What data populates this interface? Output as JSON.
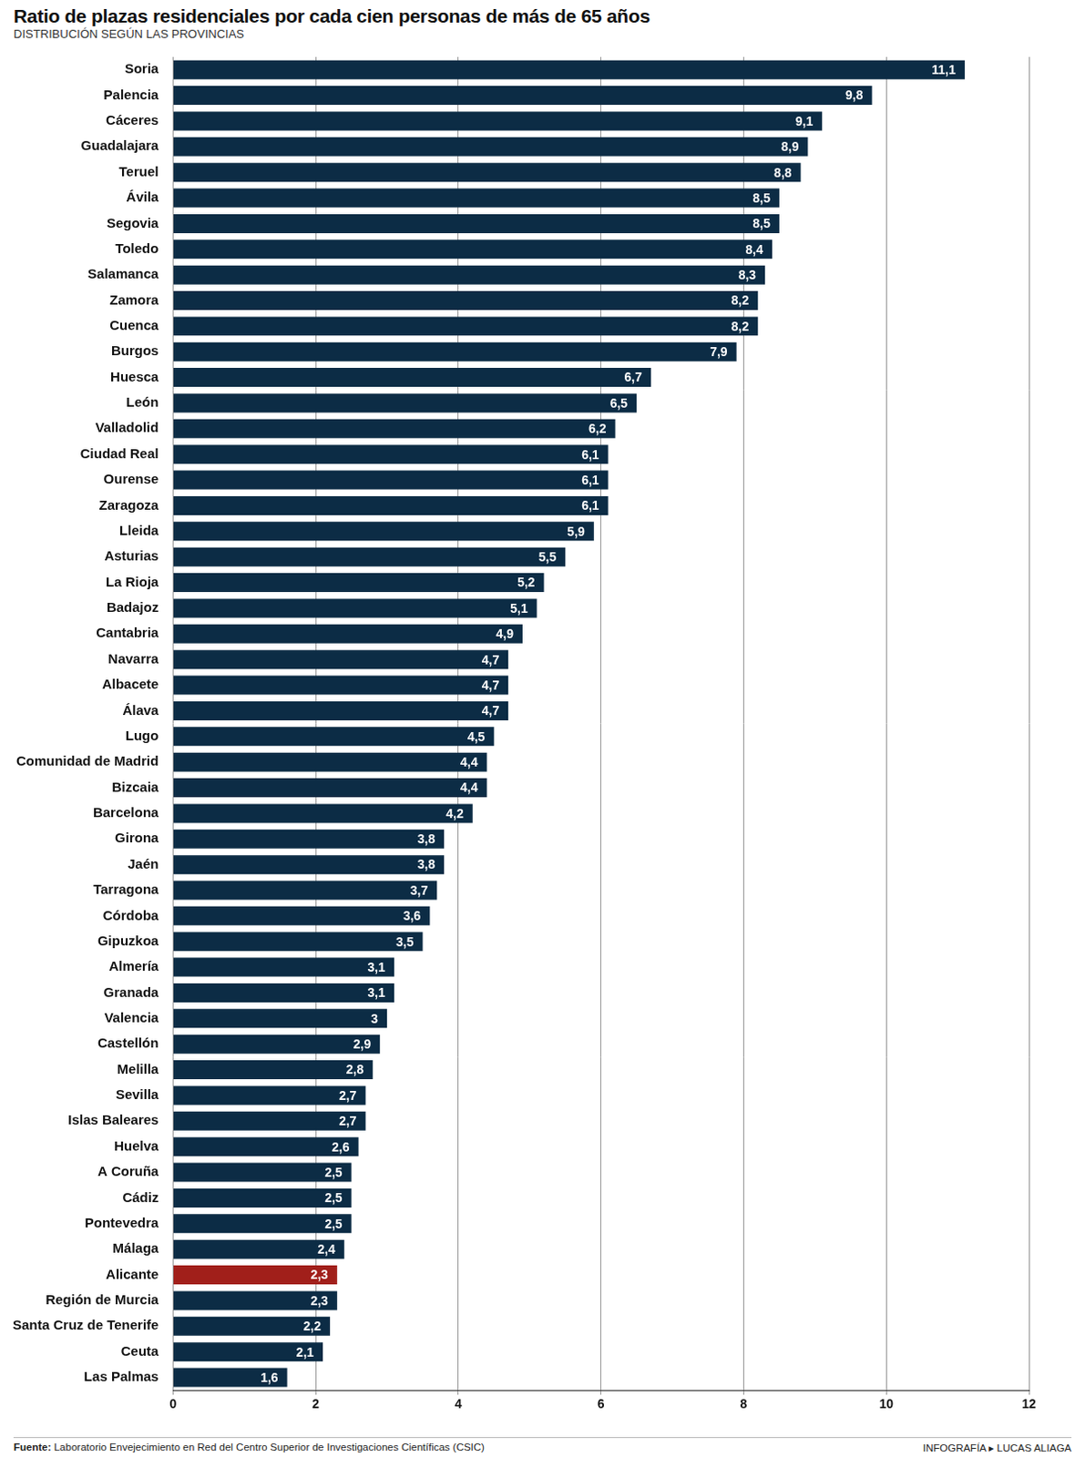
{
  "chart_data": {
    "type": "bar",
    "orientation": "horizontal",
    "title": "Ratio de plazas residenciales por cada cien personas de más de 65 años",
    "subtitle": "DISTRIBUCIÓN SEGÚN LAS PROVINCIAS",
    "source": "Fuente: Laboratorio Envejecimiento en Red del Centro Superior de Investigaciones Científicas (CSIC)",
    "credit": "INFOGRAFÍA ▸ LUCAS ALIAGA",
    "categories": [
      "Soria",
      "Palencia",
      "Cáceres",
      "Guadalajara",
      "Teruel",
      "Ávila",
      "Segovia",
      "Toledo",
      "Salamanca",
      "Zamora",
      "Cuenca",
      "Burgos",
      "Huesca",
      "León",
      "Valladolid",
      "Ciudad Real",
      "Ourense",
      "Zaragoza",
      "Lleida",
      "Asturias",
      "La Rioja",
      "Badajoz",
      "Cantabria",
      "Navarra",
      "Albacete",
      "Álava",
      "Lugo",
      "Comunidad de Madrid",
      "Bizcaia",
      "Barcelona",
      "Girona",
      "Jaén",
      "Tarragona",
      "Córdoba",
      "Gipuzkoa",
      "Almería",
      "Granada",
      "Valencia",
      "Castellón",
      "Melilla",
      "Sevilla",
      "Islas Baleares",
      "Huelva",
      "A Coruña",
      "Cádiz",
      "Pontevedra",
      "Málaga",
      "Alicante",
      "Región de Murcia",
      "Santa Cruz de Tenerife",
      "Ceuta",
      "Las Palmas"
    ],
    "values": [
      11.1,
      9.8,
      9.1,
      8.9,
      8.8,
      8.5,
      8.5,
      8.4,
      8.3,
      8.2,
      8.2,
      7.9,
      6.7,
      6.5,
      6.2,
      6.1,
      6.1,
      6.1,
      5.9,
      5.5,
      5.2,
      5.1,
      4.9,
      4.7,
      4.7,
      4.7,
      4.5,
      4.4,
      4.4,
      4.2,
      3.8,
      3.8,
      3.7,
      3.6,
      3.5,
      3.1,
      3.1,
      3,
      2.9,
      2.8,
      2.7,
      2.7,
      2.6,
      2.5,
      2.5,
      2.5,
      2.4,
      2.3,
      2.3,
      2.2,
      2.1,
      1.6
    ],
    "value_labels": [
      "11,1",
      "9,8",
      "9,1",
      "8,9",
      "8,8",
      "8,5",
      "8,5",
      "8,4",
      "8,3",
      "8,2",
      "8,2",
      "7,9",
      "6,7",
      "6,5",
      "6,2",
      "6,1",
      "6,1",
      "6,1",
      "5,9",
      "5,5",
      "5,2",
      "5,1",
      "4,9",
      "4,7",
      "4,7",
      "4,7",
      "4,5",
      "4,4",
      "4,4",
      "4,2",
      "3,8",
      "3,8",
      "3,7",
      "3,6",
      "3,5",
      "3,1",
      "3,1",
      "3",
      "2,9",
      "2,8",
      "2,7",
      "2,7",
      "2,6",
      "2,5",
      "2,5",
      "2,5",
      "2,4",
      "2,3",
      "2,3",
      "2,2",
      "2,1",
      "1,6"
    ],
    "colors": [
      "#0c2c45",
      "#0c2c45",
      "#0c2c45",
      "#0c2c45",
      "#0c2c45",
      "#0c2c45",
      "#0c2c45",
      "#0c2c45",
      "#0c2c45",
      "#0c2c45",
      "#0c2c45",
      "#0c2c45",
      "#0c2c45",
      "#0c2c45",
      "#0c2c45",
      "#0c2c45",
      "#0c2c45",
      "#0c2c45",
      "#0c2c45",
      "#0c2c45",
      "#0c2c45",
      "#0c2c45",
      "#0c2c45",
      "#0c2c45",
      "#0c2c45",
      "#0c2c45",
      "#0c2c45",
      "#0c2c45",
      "#0c2c45",
      "#0c2c45",
      "#0c2c45",
      "#0c2c45",
      "#0c2c45",
      "#0c2c45",
      "#0c2c45",
      "#0c2c45",
      "#0c2c45",
      "#0c2c45",
      "#0c2c45",
      "#0c2c45",
      "#0c2c45",
      "#0c2c45",
      "#0c2c45",
      "#0c2c45",
      "#0c2c45",
      "#0c2c45",
      "#0c2c45",
      "#a11f1a",
      "#0c2c45",
      "#0c2c45",
      "#0c2c45",
      "#0c2c45"
    ],
    "xlim": [
      0,
      12
    ],
    "xticks": [
      0,
      2,
      4,
      6,
      8,
      10,
      12
    ],
    "grid": true,
    "data_labels": true
  }
}
